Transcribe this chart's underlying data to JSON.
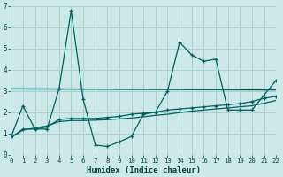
{
  "xlabel": "Humidex (Indice chaleur)",
  "bg_color": "#cce8e8",
  "grid_color": "#aacece",
  "line_color": "#006060",
  "xlim": [
    0,
    22
  ],
  "ylim": [
    0,
    7
  ],
  "xticks": [
    0,
    1,
    2,
    3,
    4,
    5,
    6,
    7,
    8,
    9,
    10,
    11,
    12,
    13,
    14,
    15,
    16,
    17,
    18,
    19,
    20,
    21,
    22
  ],
  "yticks": [
    0,
    1,
    2,
    3,
    4,
    5,
    6,
    7
  ],
  "series1_x": [
    0,
    1,
    2,
    3,
    4,
    5,
    6,
    7,
    8,
    9,
    10,
    11,
    12,
    13,
    14,
    15,
    16,
    17,
    18,
    19,
    20,
    21,
    22
  ],
  "series1_y": [
    0.8,
    2.3,
    1.2,
    1.2,
    3.1,
    6.8,
    2.6,
    0.45,
    0.38,
    0.6,
    0.85,
    1.9,
    2.0,
    3.0,
    5.3,
    4.7,
    4.4,
    4.5,
    2.1,
    2.1,
    2.1,
    2.8,
    3.5
  ],
  "series2_x": [
    0,
    1,
    2,
    3,
    4,
    5,
    6,
    7,
    8,
    9,
    10,
    11,
    12,
    13,
    14,
    15,
    16,
    17,
    18,
    19,
    20,
    21,
    22
  ],
  "series2_y": [
    0.8,
    1.2,
    1.2,
    1.3,
    1.65,
    1.7,
    1.7,
    1.7,
    1.75,
    1.8,
    1.9,
    1.95,
    2.0,
    2.1,
    2.15,
    2.2,
    2.25,
    2.3,
    2.35,
    2.4,
    2.5,
    2.65,
    2.75
  ],
  "series3_x": [
    0,
    22
  ],
  "series3_y": [
    3.1,
    3.05
  ],
  "series4_x": [
    0,
    1,
    2,
    3,
    4,
    5,
    6,
    7,
    8,
    9,
    10,
    11,
    12,
    13,
    14,
    15,
    16,
    17,
    18,
    19,
    20,
    21,
    22
  ],
  "series4_y": [
    0.8,
    1.15,
    1.25,
    1.35,
    1.55,
    1.6,
    1.6,
    1.62,
    1.64,
    1.68,
    1.72,
    1.78,
    1.85,
    1.9,
    1.98,
    2.05,
    2.1,
    2.15,
    2.2,
    2.25,
    2.3,
    2.42,
    2.55
  ]
}
